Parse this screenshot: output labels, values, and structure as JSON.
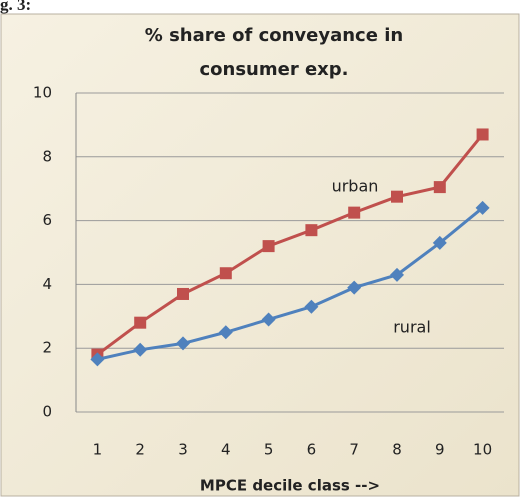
{
  "caption": "g. 3:",
  "chart_data": {
    "type": "line",
    "title": [
      "% share of conveyance in",
      "consumer exp."
    ],
    "x_label": "MPCE decile class -->",
    "categories": [
      "1",
      "2",
      "3",
      "4",
      "5",
      "6",
      "7",
      "8",
      "9",
      "10"
    ],
    "series": [
      {
        "name": "urban",
        "color": "#c0504d",
        "marker": "square",
        "values": [
          1.8,
          2.8,
          3.7,
          4.35,
          5.2,
          5.7,
          6.25,
          6.75,
          7.05,
          8.7
        ]
      },
      {
        "name": "rural",
        "color": "#4f81bd",
        "marker": "diamond",
        "values": [
          1.65,
          1.95,
          2.15,
          2.5,
          2.9,
          3.3,
          3.9,
          4.3,
          5.3,
          6.4
        ]
      }
    ],
    "ylim": [
      0,
      10
    ],
    "yticks": [
      0,
      2,
      4,
      6,
      8,
      10
    ],
    "grid": true
  }
}
